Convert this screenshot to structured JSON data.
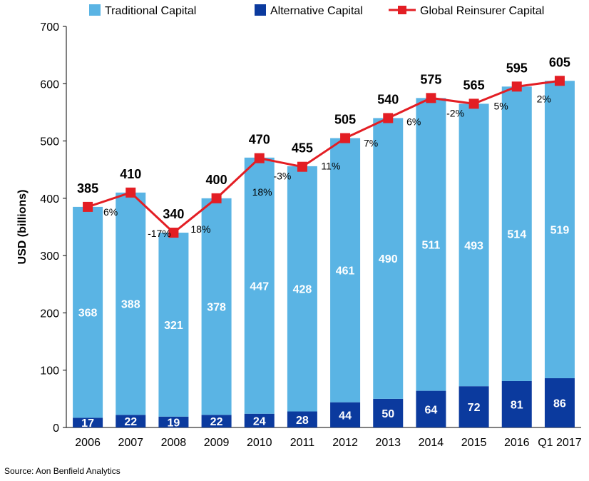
{
  "chart_data": {
    "type": "bar",
    "stacked": true,
    "categories": [
      "2006",
      "2007",
      "2008",
      "2009",
      "2010",
      "2011",
      "2012",
      "2013",
      "2014",
      "2015",
      "2016",
      "Q1 2017"
    ],
    "series": [
      {
        "name": "Traditional Capital",
        "type": "bar",
        "color": "#5ab4e4",
        "values": [
          368,
          388,
          321,
          378,
          447,
          428,
          461,
          490,
          511,
          493,
          514,
          519
        ]
      },
      {
        "name": "Alternative Capital",
        "type": "bar",
        "color": "#0b3a9e",
        "values": [
          17,
          22,
          19,
          22,
          24,
          28,
          44,
          50,
          64,
          72,
          81,
          86
        ]
      },
      {
        "name": "Global Reinsurer Capital",
        "type": "line",
        "color": "#e31e24",
        "values": [
          385,
          410,
          340,
          400,
          470,
          455,
          505,
          540,
          575,
          565,
          595,
          605
        ]
      }
    ],
    "growth_labels": [
      "6%",
      "-17%",
      "18%",
      "18%",
      "-3%",
      "11%",
      "7%",
      "6%",
      "-2%",
      "5%",
      "2%"
    ],
    "ylabel": "USD (billions)",
    "ylim": [
      0,
      700
    ],
    "yticks": [
      0,
      100,
      200,
      300,
      400,
      500,
      600,
      700
    ],
    "grid": false,
    "legend": "top"
  },
  "source": "Source: Aon Benfield Analytics"
}
